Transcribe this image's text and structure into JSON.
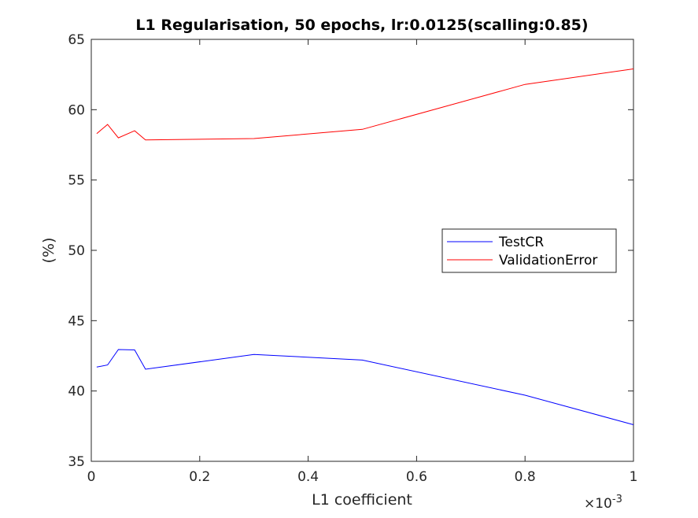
{
  "chart_data": {
    "type": "line",
    "title": "L1 Regularisation, 50 epochs, lr:0.0125(scalling:0.85)",
    "xlabel": "L1 coefficient",
    "ylabel": "(%)",
    "x_exponent_base": "×10",
    "x_exponent_power": "-3",
    "xlim": [
      0,
      1
    ],
    "ylim": [
      35,
      65
    ],
    "xticks": [
      0,
      0.2,
      0.4,
      0.6,
      0.8,
      1
    ],
    "xtick_labels": [
      "0",
      "0.2",
      "0.4",
      "0.6",
      "0.8",
      "1"
    ],
    "yticks": [
      35,
      40,
      45,
      50,
      55,
      60,
      65
    ],
    "ytick_labels": [
      "35",
      "40",
      "45",
      "50",
      "55",
      "60",
      "65"
    ],
    "grid": false,
    "legend_position": "right",
    "x": [
      0.01,
      0.03,
      0.05,
      0.08,
      0.1,
      0.3,
      0.5,
      0.8,
      1.0
    ],
    "series": [
      {
        "name": "TestCR",
        "color": "#0000ff",
        "values": [
          41.7,
          41.85,
          42.95,
          42.92,
          41.55,
          42.6,
          42.2,
          39.7,
          37.6
        ]
      },
      {
        "name": "ValidationError",
        "color": "#ff0000",
        "values": [
          58.3,
          58.95,
          58.0,
          58.5,
          57.85,
          57.95,
          58.6,
          61.8,
          62.9
        ]
      }
    ]
  }
}
